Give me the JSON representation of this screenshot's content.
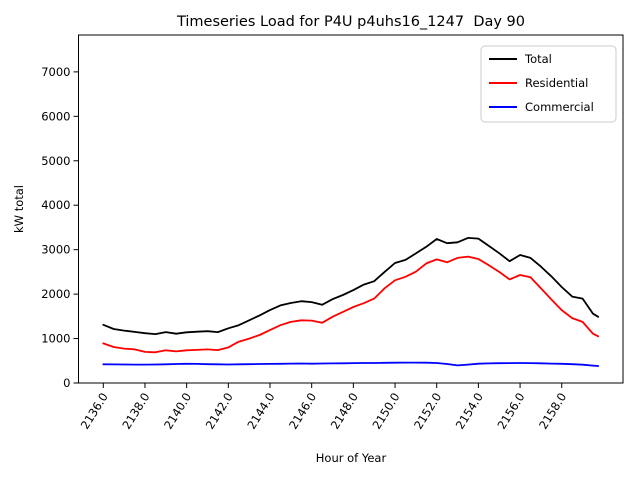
{
  "chart_data": {
    "type": "line",
    "title": "Timeseries Load for P4U p4uhs16_1247  Day 90",
    "xlabel": "Hour of Year",
    "ylabel": "kW total",
    "grid": false,
    "xlim": [
      2134.81,
      2160.94
    ],
    "ylim": [
      0,
      7830
    ],
    "xticks": {
      "values": [
        2136,
        2138,
        2140,
        2142,
        2144,
        2146,
        2148,
        2150,
        2152,
        2154,
        2156,
        2158
      ],
      "labels": [
        "2136.0",
        "2138.0",
        "2140.0",
        "2142.0",
        "2144.0",
        "2146.0",
        "2148.0",
        "2150.0",
        "2152.0",
        "2154.0",
        "2156.0",
        "2158.0"
      ]
    },
    "yticks": {
      "values": [
        0,
        1000,
        2000,
        3000,
        4000,
        5000,
        6000,
        7000
      ],
      "labels": [
        "0",
        "1000",
        "2000",
        "3000",
        "4000",
        "5000",
        "6000",
        "7000"
      ]
    },
    "x": [
      2136.0,
      2136.5,
      2137.0,
      2137.5,
      2138.0,
      2138.5,
      2139.0,
      2139.5,
      2140.0,
      2140.5,
      2141.0,
      2141.5,
      2142.0,
      2142.5,
      2143.0,
      2143.5,
      2144.0,
      2144.5,
      2145.0,
      2145.5,
      2146.0,
      2146.5,
      2147.0,
      2147.5,
      2148.0,
      2148.5,
      2149.0,
      2149.5,
      2150.0,
      2150.5,
      2151.0,
      2151.5,
      2152.0,
      2152.5,
      2153.0,
      2153.5,
      2154.0,
      2154.5,
      2155.0,
      2155.5,
      2156.0,
      2156.5,
      2157.0,
      2157.5,
      2158.0,
      2158.5,
      2159.0,
      2159.5,
      2159.75
    ],
    "series": [
      {
        "name": "Total",
        "color": "#000000",
        "values": [
          1310,
          1215,
          1180,
          1150,
          1120,
          1100,
          1145,
          1110,
          1140,
          1155,
          1165,
          1145,
          1230,
          1300,
          1410,
          1520,
          1640,
          1745,
          1800,
          1840,
          1820,
          1760,
          1885,
          1980,
          2090,
          2215,
          2290,
          2500,
          2700,
          2770,
          2915,
          3065,
          3240,
          3145,
          3165,
          3265,
          3250,
          3085,
          2920,
          2740,
          2880,
          2815,
          2620,
          2400,
          2160,
          1945,
          1900,
          1560,
          1490
        ]
      },
      {
        "name": "Residential",
        "color": "#ff0000",
        "values": [
          890,
          810,
          775,
          755,
          700,
          690,
          735,
          710,
          735,
          745,
          755,
          740,
          800,
          930,
          1000,
          1080,
          1190,
          1300,
          1375,
          1410,
          1405,
          1355,
          1490,
          1600,
          1710,
          1795,
          1900,
          2130,
          2310,
          2390,
          2505,
          2690,
          2780,
          2715,
          2815,
          2845,
          2790,
          2650,
          2500,
          2330,
          2430,
          2380,
          2130,
          1880,
          1640,
          1460,
          1375,
          1110,
          1050
        ]
      },
      {
        "name": "Commercial",
        "color": "#0000ff",
        "values": [
          420,
          418,
          416,
          415,
          414,
          416,
          420,
          428,
          433,
          430,
          424,
          420,
          417,
          420,
          424,
          427,
          430,
          433,
          436,
          438,
          435,
          438,
          441,
          444,
          447,
          449,
          451,
          454,
          456,
          458,
          460,
          457,
          450,
          428,
          396,
          414,
          434,
          441,
          445,
          448,
          450,
          447,
          443,
          437,
          431,
          424,
          411,
          391,
          382
        ]
      }
    ],
    "legend": {
      "position": "upper right",
      "entries": [
        "Total",
        "Residential",
        "Commercial"
      ]
    }
  }
}
